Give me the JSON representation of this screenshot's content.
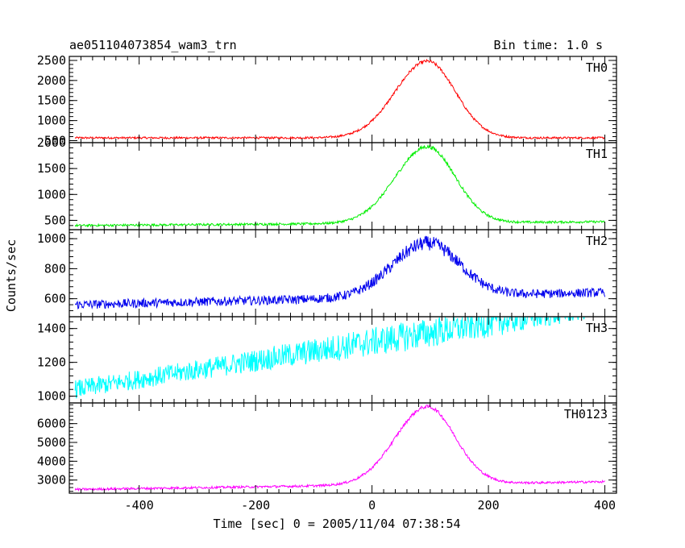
{
  "chart_data": {
    "type": "line",
    "title": "ae051104073854_wam3_trn",
    "subtitle": "Bin time: 1.0 s",
    "xlabel": "Time [sec] 0 = 2005/11/04 07:38:54",
    "ylabel": "Counts/sec",
    "xlim": [
      -520,
      420
    ],
    "xticks": [
      -400,
      -200,
      0,
      200,
      400
    ],
    "x_range": [
      -510,
      400
    ],
    "panels": [
      {
        "name": "TH0",
        "color": "#ff0000",
        "ylim": [
          450,
          2600
        ],
        "yticks": [
          500,
          1000,
          1500,
          2000,
          2500
        ],
        "baseline": 570,
        "baseline_slope": 0,
        "peak": 2480,
        "peak_x": 95,
        "sigma_left": 55,
        "sigma_right": 48,
        "noise": 25
      },
      {
        "name": "TH1",
        "color": "#00ee00",
        "ylim": [
          320,
          2000
        ],
        "yticks": [
          500,
          1000,
          1500,
          2000
        ],
        "baseline": 400,
        "baseline_slope": 0.08,
        "peak": 1920,
        "peak_x": 95,
        "sigma_left": 55,
        "sigma_right": 48,
        "noise": 22
      },
      {
        "name": "TH2",
        "color": "#0000ee",
        "ylim": [
          480,
          1060
        ],
        "yticks": [
          600,
          800,
          1000
        ],
        "baseline": 560,
        "baseline_slope": 0.09,
        "peak": 970,
        "peak_x": 95,
        "sigma_left": 60,
        "sigma_right": 55,
        "noise": 30
      },
      {
        "name": "TH3",
        "color": "#00ffff",
        "ylim": [
          960,
          1470
        ],
        "yticks": [
          1000,
          1200,
          1400
        ],
        "baseline": 1040,
        "baseline_slope": 0.55,
        "peak": 1360,
        "peak_x": 90,
        "sigma_left": 200,
        "sigma_right": 220,
        "noise": 55
      },
      {
        "name": "TH0123",
        "color": "#ff00ff",
        "ylim": [
          2300,
          7100
        ],
        "yticks": [
          3000,
          4000,
          5000,
          6000
        ],
        "baseline": 2500,
        "baseline_slope": 0.45,
        "peak": 6900,
        "peak_x": 95,
        "sigma_left": 55,
        "sigma_right": 48,
        "noise": 60
      }
    ]
  }
}
